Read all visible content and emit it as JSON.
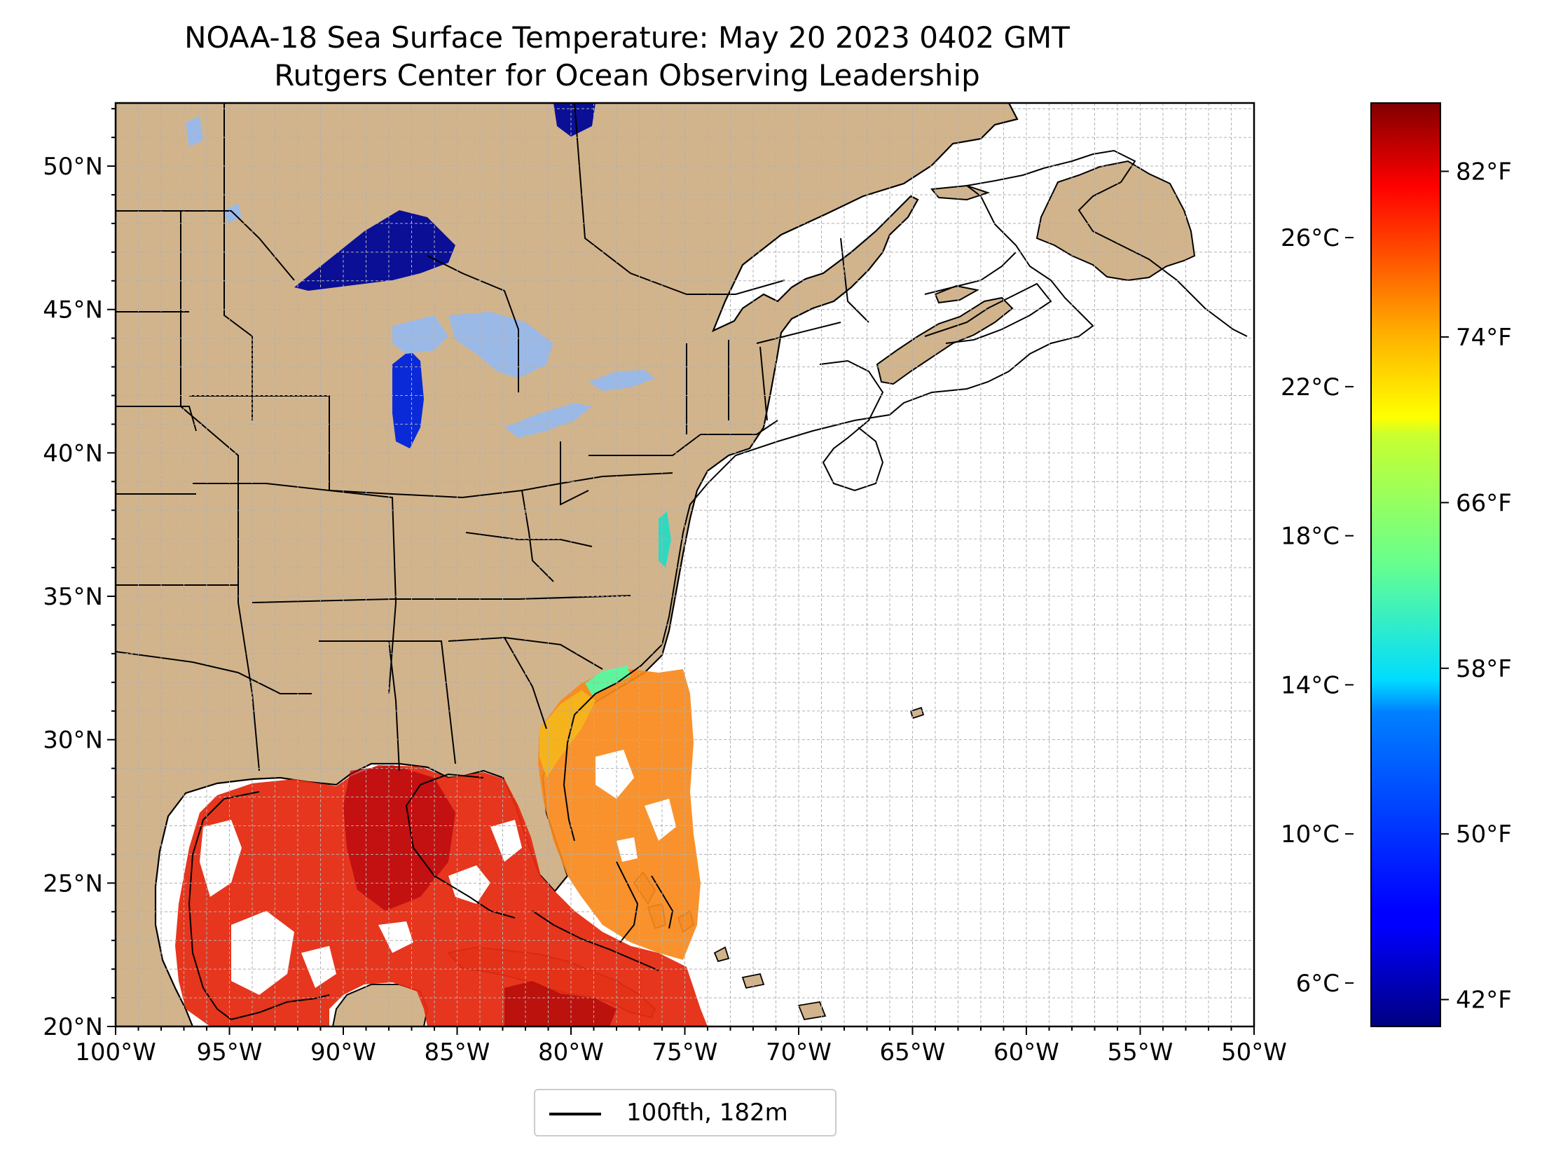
{
  "title": "NOAA-18 Sea Surface Temperature: May 20 2023 0402 GMT",
  "subtitle": "Rutgers Center for Ocean Observing Leadership",
  "legend": {
    "label": "100fth, 182m"
  },
  "colors": {
    "land": "#d2b48c",
    "ocean_nodata": "#ffffff",
    "lakes": "#9bb9e6",
    "superior": "#0a0f96",
    "gulf": "#e52b12",
    "atlantic_sst": "#f9891a",
    "grid": "#b0b0b0"
  },
  "map_data": {
    "type": "map",
    "lon_range": [
      -100,
      -50
    ],
    "lat_range": [
      20,
      52.2
    ],
    "lon_ticks": [
      -100,
      -95,
      -90,
      -85,
      -80,
      -75,
      -70,
      -65,
      -60,
      -55,
      -50
    ],
    "lon_labels": [
      "100°W",
      "95°W",
      "90°W",
      "85°W",
      "80°W",
      "75°W",
      "70°W",
      "65°W",
      "60°W",
      "55°W",
      "50°W"
    ],
    "lat_ticks": [
      20,
      25,
      30,
      35,
      40,
      45,
      50
    ],
    "lat_labels": [
      "20°N",
      "25°N",
      "30°N",
      "35°N",
      "40°N",
      "45°N",
      "50°N"
    ]
  },
  "colorbar": {
    "colormap": "jet",
    "celsius_ticks": [
      6,
      10,
      14,
      18,
      22,
      26
    ],
    "celsius_labels": [
      "6°C",
      "10°C",
      "14°C",
      "18°C",
      "22°C",
      "26°C"
    ],
    "fahrenheit_ticks": [
      42,
      50,
      58,
      66,
      74,
      82
    ],
    "fahrenheit_labels": [
      "42°F",
      "50°F",
      "58°F",
      "66°F",
      "74°F",
      "82°F"
    ],
    "range_f": [
      40.7,
      85.3
    ]
  }
}
